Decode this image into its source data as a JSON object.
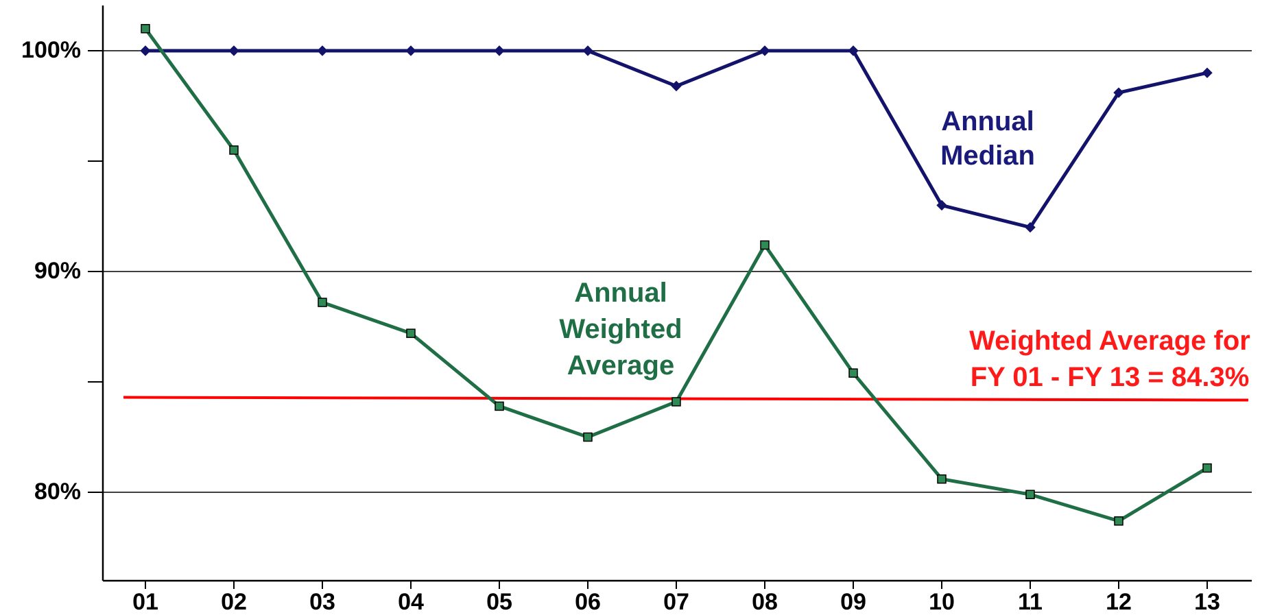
{
  "chart_data": {
    "type": "line",
    "categories": [
      "01",
      "02",
      "03",
      "04",
      "05",
      "06",
      "07",
      "08",
      "09",
      "10",
      "11",
      "12",
      "13"
    ],
    "ylim": [
      76,
      102
    ],
    "y_ticks": [
      80,
      90,
      100
    ],
    "y_tick_labels": [
      "80%",
      "90%",
      "100%"
    ],
    "y_minor_ticks": [
      85,
      95
    ],
    "grid": "horizontal at 80, 90, 100",
    "series": [
      {
        "name": "Annual Median",
        "label_lines": [
          "Annual",
          "Median"
        ],
        "color": "#13136b",
        "marker": "diamond",
        "values": [
          100,
          100,
          100,
          100,
          100,
          100,
          98.4,
          100,
          100,
          93,
          92,
          98.1,
          99
        ]
      },
      {
        "name": "Annual Weighted Average",
        "label_lines": [
          "Annual",
          "Weighted",
          "Average"
        ],
        "color": "#1f6e45",
        "marker": "square",
        "values": [
          101,
          95.5,
          88.6,
          87.2,
          83.9,
          82.5,
          84.1,
          91.2,
          85.4,
          80.6,
          79.9,
          78.7,
          81.1
        ]
      }
    ],
    "reference_line": {
      "value": 84.3,
      "color": "#ff0000",
      "label_lines": [
        "Weighted Average for",
        "FY 01 - FY 13 = 84.3%"
      ]
    }
  }
}
